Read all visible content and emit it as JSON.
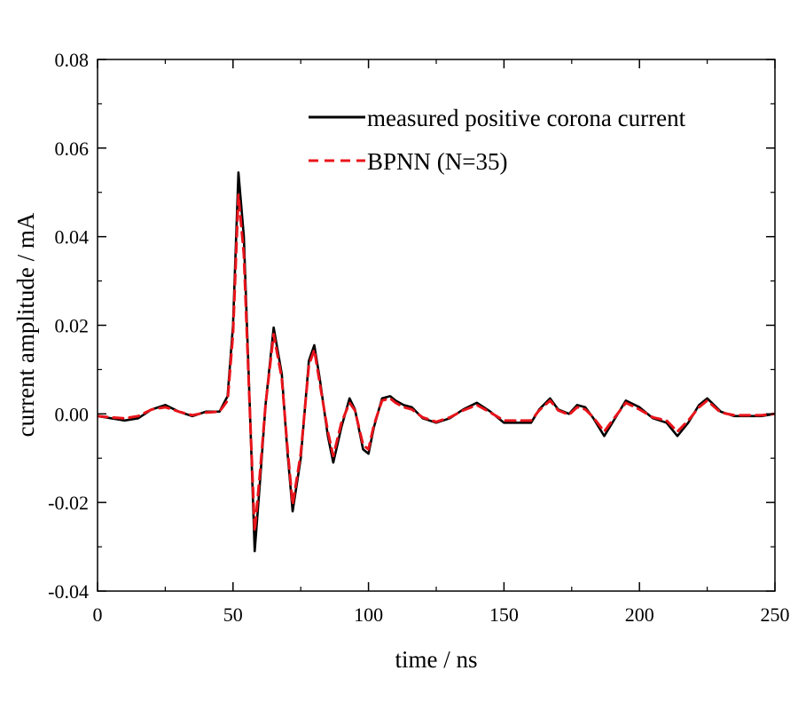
{
  "chart_data": {
    "type": "line",
    "title": "",
    "xlabel": "time / ns",
    "ylabel": "current amplitude / mA",
    "xlim": [
      0,
      250
    ],
    "ylim": [
      -0.04,
      0.08
    ],
    "x_ticks": [
      0,
      50,
      100,
      150,
      200,
      250
    ],
    "x_tick_labels": [
      "0",
      "50",
      "100",
      "150",
      "200",
      "250"
    ],
    "y_ticks": [
      -0.04,
      -0.02,
      0.0,
      0.02,
      0.04,
      0.06,
      0.08
    ],
    "y_tick_labels": [
      "-0.04",
      "-0.02",
      "0.00",
      "0.02",
      "0.04",
      "0.06",
      "0.08"
    ],
    "grid": false,
    "legend_position": "top-right",
    "series": [
      {
        "name": "measured positive corona current",
        "color": "#000000",
        "style": "solid",
        "x": [
          0,
          5,
          10,
          15,
          20,
          25,
          30,
          35,
          40,
          45,
          48,
          50,
          52,
          54,
          56,
          58,
          60,
          62,
          65,
          68,
          70,
          72,
          75,
          78,
          80,
          82,
          85,
          87,
          90,
          93,
          95,
          98,
          100,
          102,
          105,
          108,
          110,
          113,
          116,
          120,
          125,
          130,
          135,
          140,
          145,
          150,
          155,
          160,
          163,
          167,
          170,
          174,
          177,
          180,
          183,
          187,
          190,
          195,
          200,
          205,
          210,
          214,
          218,
          222,
          225,
          230,
          235,
          240,
          245,
          250
        ],
        "y": [
          -0.0005,
          -0.001,
          -0.0015,
          -0.001,
          0.001,
          0.002,
          0.0005,
          -0.0005,
          0.0005,
          0.0005,
          0.004,
          0.02,
          0.0545,
          0.04,
          0.005,
          -0.031,
          -0.015,
          0.002,
          0.0195,
          0.009,
          -0.008,
          -0.022,
          -0.01,
          0.012,
          0.0155,
          0.008,
          -0.005,
          -0.011,
          -0.003,
          0.0035,
          0.001,
          -0.008,
          -0.009,
          -0.003,
          0.0035,
          0.004,
          0.003,
          0.002,
          0.0015,
          -0.001,
          -0.002,
          -0.001,
          0.001,
          0.0025,
          0.0005,
          -0.002,
          -0.002,
          -0.002,
          0.001,
          0.0035,
          0.001,
          0.0,
          0.002,
          0.0015,
          -0.001,
          -0.005,
          -0.002,
          0.003,
          0.0015,
          -0.001,
          -0.002,
          -0.005,
          -0.002,
          0.002,
          0.0035,
          0.0005,
          -0.0005,
          -0.0005,
          -0.0005,
          0.0
        ]
      },
      {
        "name": "BPNN (N=35)",
        "color": "#e8141b",
        "style": "dashed",
        "x": [
          0,
          5,
          10,
          15,
          20,
          25,
          30,
          35,
          40,
          45,
          48,
          50,
          52,
          54,
          56,
          58,
          60,
          62,
          65,
          68,
          70,
          72,
          75,
          78,
          80,
          82,
          85,
          87,
          90,
          93,
          95,
          98,
          100,
          102,
          105,
          108,
          110,
          113,
          116,
          120,
          125,
          130,
          135,
          140,
          145,
          150,
          155,
          160,
          163,
          167,
          170,
          174,
          177,
          180,
          183,
          187,
          190,
          195,
          200,
          205,
          210,
          214,
          218,
          222,
          225,
          230,
          235,
          240,
          245,
          250
        ],
        "y": [
          -0.0005,
          -0.0008,
          -0.001,
          -0.0005,
          0.001,
          0.0015,
          0.0005,
          -0.0003,
          0.0003,
          0.0005,
          0.003,
          0.018,
          0.0495,
          0.036,
          0.004,
          -0.0265,
          -0.013,
          0.002,
          0.018,
          0.008,
          -0.007,
          -0.0205,
          -0.009,
          0.011,
          0.0145,
          0.007,
          -0.004,
          -0.0095,
          -0.002,
          0.0025,
          0.0008,
          -0.007,
          -0.008,
          -0.0025,
          0.003,
          0.0035,
          0.0025,
          0.0015,
          0.001,
          -0.0008,
          -0.0018,
          -0.0008,
          0.0008,
          0.002,
          0.0003,
          -0.0015,
          -0.0015,
          -0.0015,
          0.0008,
          0.003,
          0.0008,
          -0.0002,
          0.0015,
          0.001,
          -0.0008,
          -0.004,
          -0.0015,
          0.0025,
          0.001,
          -0.0008,
          -0.0015,
          -0.004,
          -0.0015,
          0.0015,
          0.003,
          0.0003,
          -0.0003,
          -0.0003,
          -0.0003,
          0.0
        ]
      }
    ]
  }
}
